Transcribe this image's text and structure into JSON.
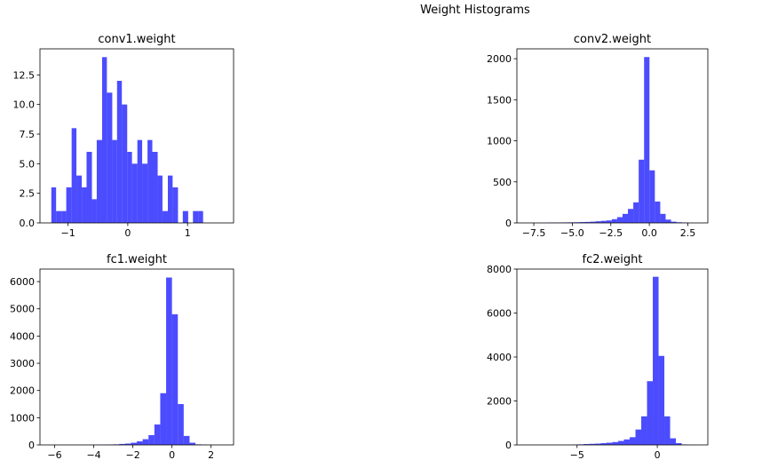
{
  "title": "Weight Histograms",
  "chart_data": [
    {
      "type": "bar",
      "title": "conv1.weight",
      "color": "#0000ff",
      "opacity": 0.7,
      "bins_x": [
        -1.28,
        -1.2,
        -1.11,
        -1.03,
        -0.94,
        -0.86,
        -0.77,
        -0.69,
        -0.6,
        -0.52,
        -0.43,
        -0.35,
        -0.26,
        -0.18,
        -0.1,
        -0.01,
        0.07,
        0.16,
        0.24,
        0.33,
        0.41,
        0.5,
        0.58,
        0.67,
        0.75,
        0.84,
        0.92,
        1.01,
        1.09,
        1.18,
        1.26,
        1.35,
        1.43,
        1.52,
        1.6
      ],
      "counts": [
        3,
        1,
        1,
        3,
        8,
        4,
        3,
        6,
        2,
        7,
        14,
        11,
        7,
        12,
        10,
        6,
        5,
        7,
        5,
        7,
        6,
        4,
        1,
        4,
        3,
        0,
        1,
        0,
        1,
        1
      ],
      "xlim": [
        -1.47,
        1.77
      ],
      "ylim": [
        0,
        14.7
      ],
      "xticks": [
        -1,
        0,
        1
      ],
      "xtick_labels": [
        "−1",
        "0",
        "1"
      ],
      "yticks": [
        0,
        2.5,
        5,
        7.5,
        10,
        12.5
      ],
      "ytick_labels": [
        "0.0",
        "2.5",
        "5.0",
        "7.5",
        "10.0",
        "12.5"
      ]
    },
    {
      "type": "bar",
      "title": "conv2.weight",
      "color": "#0000ff",
      "opacity": 0.7,
      "bins_x": [
        -8.04,
        -7.69,
        -7.34,
        -6.99,
        -6.64,
        -6.29,
        -5.94,
        -5.59,
        -5.24,
        -4.89,
        -4.54,
        -4.19,
        -3.84,
        -3.49,
        -3.14,
        -2.79,
        -2.44,
        -2.09,
        -1.74,
        -1.39,
        -1.04,
        -0.69,
        -0.34,
        0.01,
        0.36,
        0.71,
        1.06,
        1.41,
        1.76,
        2.11,
        2.46
      ],
      "counts": [
        0,
        0,
        0,
        0,
        3,
        4,
        5,
        6,
        7,
        8,
        10,
        12,
        15,
        20,
        25,
        30,
        45,
        70,
        110,
        170,
        250,
        770,
        2020,
        640,
        260,
        110,
        40,
        15,
        8,
        5
      ],
      "xlim": [
        -8.6,
        3.8
      ],
      "ylim": [
        0,
        2120
      ],
      "xticks": [
        -7.5,
        -5.0,
        -2.5,
        0.0,
        2.5
      ],
      "xtick_labels": [
        "−7.5",
        "−5.0",
        "−2.5",
        "0.0",
        "2.5"
      ],
      "yticks": [
        0,
        500,
        1000,
        1500,
        2000
      ],
      "ytick_labels": [
        "0",
        "500",
        "1000",
        "1500",
        "2000"
      ]
    },
    {
      "type": "bar",
      "title": "fc1.weight",
      "color": "#0000ff",
      "opacity": 0.7,
      "bins_x": [
        -6.3,
        -6.0,
        -5.7,
        -5.4,
        -5.1,
        -4.8,
        -4.5,
        -4.2,
        -3.9,
        -3.6,
        -3.3,
        -3.0,
        -2.7,
        -2.4,
        -2.1,
        -1.8,
        -1.5,
        -1.2,
        -0.9,
        -0.6,
        -0.3,
        0.0,
        0.3,
        0.6,
        0.9,
        1.2,
        1.5,
        1.8,
        2.1,
        2.4,
        2.7
      ],
      "counts": [
        0,
        0,
        0,
        0,
        0,
        0,
        0,
        2,
        5,
        8,
        12,
        20,
        35,
        50,
        80,
        130,
        210,
        360,
        750,
        1900,
        6150,
        4800,
        1500,
        330,
        80,
        20,
        8,
        3,
        1,
        1
      ],
      "xlim": [
        -6.75,
        3.15
      ],
      "ylim": [
        0,
        6460
      ],
      "xticks": [
        -6,
        -4,
        -2,
        0,
        2
      ],
      "xtick_labels": [
        "−6",
        "−4",
        "−2",
        "0",
        "2"
      ],
      "yticks": [
        0,
        1000,
        2000,
        3000,
        4000,
        5000,
        6000
      ],
      "ytick_labels": [
        "0",
        "1000",
        "2000",
        "3000",
        "4000",
        "5000",
        "6000"
      ]
    },
    {
      "type": "bar",
      "title": "fc2.weight",
      "color": "#0000ff",
      "opacity": 0.7,
      "bins_x": [
        -8.2,
        -7.84,
        -7.48,
        -7.12,
        -6.76,
        -6.4,
        -6.04,
        -5.68,
        -5.32,
        -4.96,
        -4.6,
        -4.24,
        -3.88,
        -3.52,
        -3.16,
        -2.8,
        -2.44,
        -2.08,
        -1.72,
        -1.36,
        -1.0,
        -0.64,
        -0.28,
        0.08,
        0.44,
        0.8,
        1.16,
        1.52,
        1.88,
        2.24,
        2.6
      ],
      "counts": [
        0,
        0,
        0,
        0,
        0,
        0,
        0,
        0,
        15,
        25,
        40,
        50,
        60,
        80,
        100,
        130,
        180,
        250,
        350,
        700,
        1300,
        2900,
        7650,
        4050,
        1300,
        300,
        80,
        20,
        5,
        2
      ],
      "xlim": [
        -8.75,
        3.15
      ],
      "ylim": [
        0,
        8000
      ],
      "xticks": [
        -5,
        0
      ],
      "xtick_labels": [
        "−5",
        "0"
      ],
      "yticks": [
        0,
        2000,
        4000,
        6000,
        8000
      ],
      "ytick_labels": [
        "0",
        "2000",
        "4000",
        "6000",
        "8000"
      ]
    }
  ]
}
